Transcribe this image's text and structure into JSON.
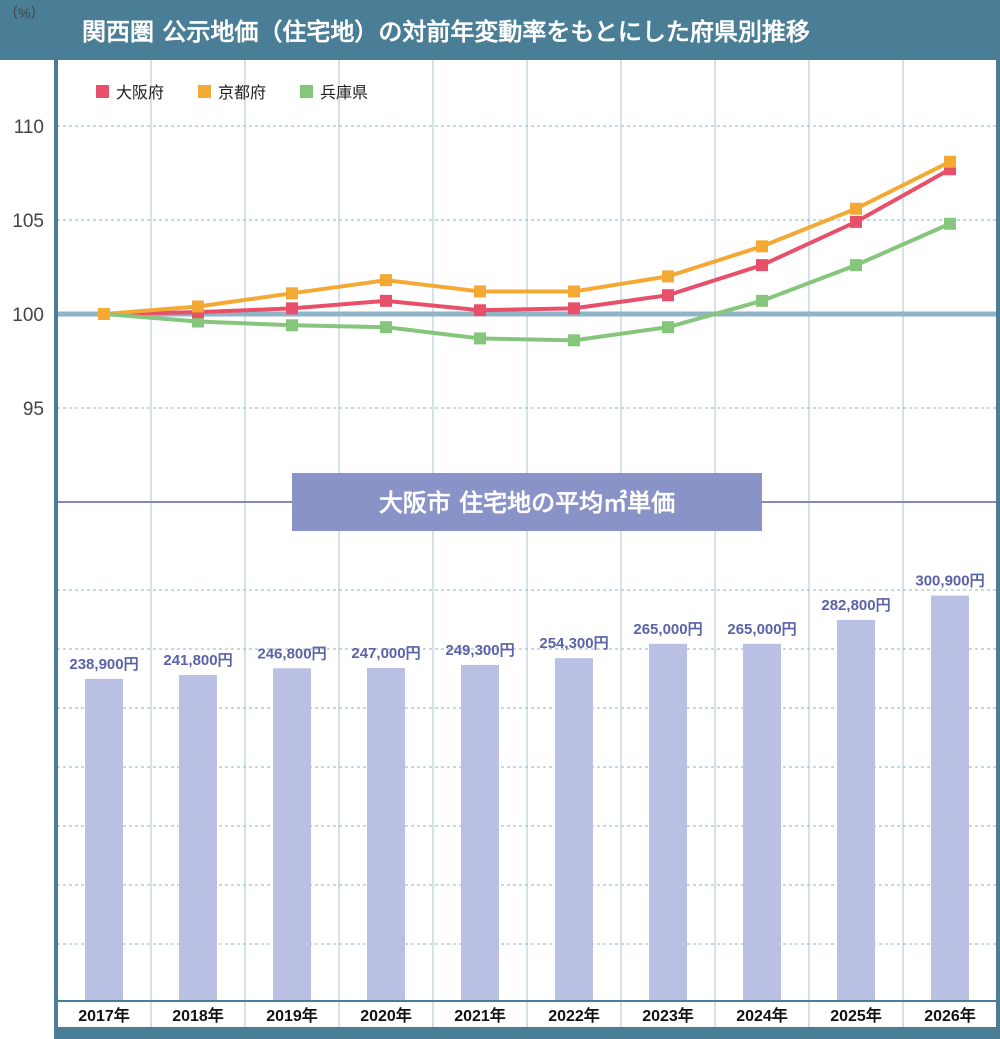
{
  "chart_data": [
    {
      "type": "line",
      "title": "関西圏 公示地価（住宅地）の対前年変動率をもとにした府県別推移",
      "ylabel": "（%）",
      "categories": [
        "2017年",
        "2018年",
        "2019年",
        "2020年",
        "2021年",
        "2022年",
        "2023年",
        "2024年",
        "2025年",
        "2026年"
      ],
      "yticks": [
        "110",
        "105",
        "100",
        "95"
      ],
      "ylim": [
        90,
        113
      ],
      "baseline": 100,
      "grid": true,
      "legend": "top-left",
      "series": [
        {
          "name": "大阪府",
          "color": "#e8506a",
          "values": [
            100,
            100.1,
            100.3,
            100.7,
            100.2,
            100.3,
            101.0,
            102.6,
            104.9,
            107.7
          ]
        },
        {
          "name": "京都府",
          "color": "#f5a935",
          "values": [
            100,
            100.4,
            101.1,
            101.8,
            101.2,
            101.2,
            102.0,
            103.6,
            105.6,
            108.1
          ]
        },
        {
          "name": "兵庫県",
          "color": "#86c67c",
          "values": [
            100,
            99.6,
            99.4,
            99.3,
            98.7,
            98.6,
            99.3,
            100.7,
            102.6,
            104.8
          ]
        }
      ]
    },
    {
      "type": "bar",
      "title": "大阪市 住宅地の平均㎡単価",
      "categories": [
        "2017年",
        "2018年",
        "2019年",
        "2020年",
        "2021年",
        "2022年",
        "2023年",
        "2024年",
        "2025年",
        "2026年"
      ],
      "values": [
        238900,
        241800,
        246800,
        247000,
        249300,
        254300,
        265000,
        265000,
        282800,
        300900
      ],
      "labels": [
        "238,900円",
        "241,800円",
        "246,800円",
        "247,000円",
        "249,300円",
        "254,300円",
        "265,000円",
        "265,000円",
        "282,800円",
        "300,900円"
      ],
      "color": "#b9c0e3",
      "label_color": "#5a62a8",
      "grid": true
    }
  ],
  "colors": {
    "frame": "#4a7e96",
    "subtitle_bg": "#8a93c8"
  }
}
